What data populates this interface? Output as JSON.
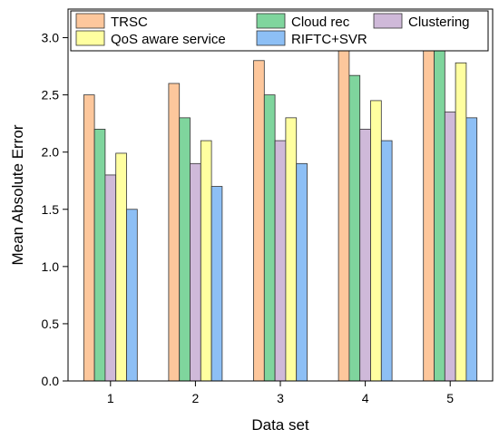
{
  "chart_data": {
    "type": "bar",
    "title": "",
    "xlabel": "Data set",
    "ylabel": "Mean Absolute Error",
    "categories": [
      "1",
      "2",
      "3",
      "4",
      "5"
    ],
    "ylim": [
      0,
      3.25
    ],
    "yticks": [
      "0.0",
      "0.5",
      "1.0",
      "1.5",
      "2.0",
      "2.5",
      "3.0"
    ],
    "legend_position": "top",
    "grid": false,
    "series": [
      {
        "name": "TRSC",
        "color": "#FDC79C",
        "values": [
          2.5,
          2.6,
          2.8,
          2.9,
          3.0
        ]
      },
      {
        "name": "Cloud rec",
        "color": "#7FD59D",
        "values": [
          2.2,
          2.3,
          2.5,
          2.67,
          2.98
        ]
      },
      {
        "name": "Clustering",
        "color": "#CFB9D9",
        "values": [
          1.8,
          1.9,
          2.1,
          2.2,
          2.35
        ]
      },
      {
        "name": "QoS aware service",
        "color": "#FFFFA0",
        "values": [
          1.99,
          2.1,
          2.3,
          2.45,
          2.78
        ]
      },
      {
        "name": "RIFTC+SVR",
        "color": "#8DBFF5",
        "values": [
          1.5,
          1.7,
          1.9,
          2.1,
          2.3
        ]
      }
    ]
  }
}
